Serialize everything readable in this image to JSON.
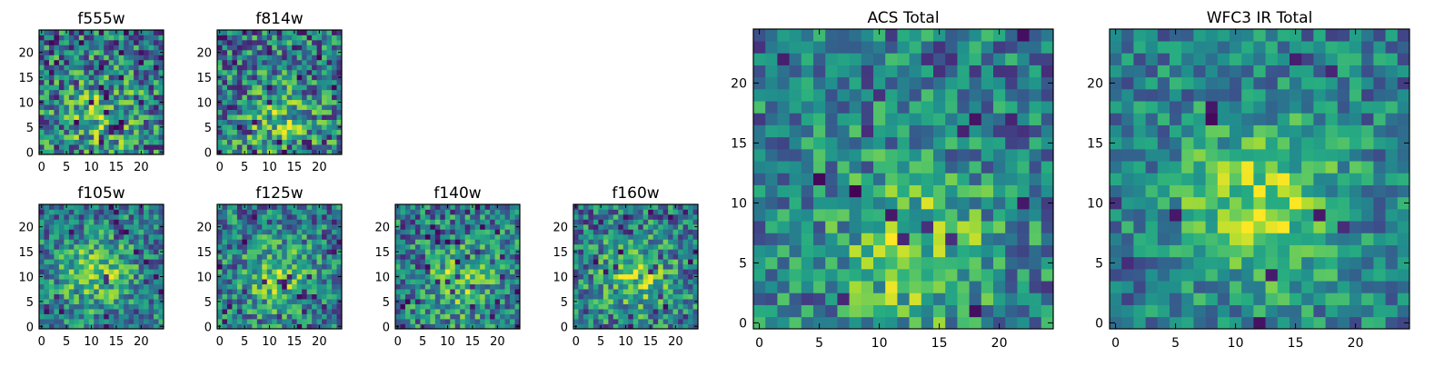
{
  "figure": {
    "colormap": "viridis",
    "colors": {
      "low": "#440154",
      "mid": "#21908d",
      "high": "#fde725",
      "frame": "#000000"
    }
  },
  "chart_data": [
    {
      "type": "heatmap",
      "title": "f555w",
      "grid_size": 25,
      "xticks": [
        0,
        5,
        10,
        15,
        20
      ],
      "yticks": [
        0,
        5,
        10,
        15,
        20
      ],
      "center_x": 12,
      "center_y": 7,
      "noise": 0.46,
      "blob": 0.3,
      "dark_fraction": 0.07
    },
    {
      "type": "heatmap",
      "title": "f814w",
      "grid_size": 25,
      "xticks": [
        0,
        5,
        10,
        15,
        20
      ],
      "yticks": [
        0,
        5,
        10,
        15,
        20
      ],
      "center_x": 12,
      "center_y": 6,
      "noise": 0.46,
      "blob": 0.28,
      "dark_fraction": 0.08
    },
    {
      "type": "heatmap",
      "title": "f105w",
      "grid_size": 25,
      "xticks": [
        0,
        5,
        10,
        15,
        20
      ],
      "yticks": [
        0,
        5,
        10,
        15,
        20
      ],
      "center_x": 11,
      "center_y": 11,
      "noise": 0.36,
      "blob": 0.35,
      "dark_fraction": 0.05
    },
    {
      "type": "heatmap",
      "title": "f125w",
      "grid_size": 25,
      "xticks": [
        0,
        5,
        10,
        15,
        20
      ],
      "yticks": [
        0,
        5,
        10,
        15,
        20
      ],
      "center_x": 12,
      "center_y": 10,
      "noise": 0.38,
      "blob": 0.32,
      "dark_fraction": 0.05
    },
    {
      "type": "heatmap",
      "title": "f140w",
      "grid_size": 25,
      "xticks": [
        0,
        5,
        10,
        15,
        20
      ],
      "yticks": [
        0,
        5,
        10,
        15,
        20
      ],
      "center_x": 12,
      "center_y": 9,
      "noise": 0.4,
      "blob": 0.32,
      "dark_fraction": 0.06
    },
    {
      "type": "heatmap",
      "title": "f160w",
      "grid_size": 25,
      "xticks": [
        0,
        5,
        10,
        15,
        20
      ],
      "yticks": [
        0,
        5,
        10,
        15,
        20
      ],
      "center_x": 12,
      "center_y": 10,
      "noise": 0.4,
      "blob": 0.33,
      "dark_fraction": 0.05
    },
    {
      "type": "heatmap",
      "title": "ACS Total",
      "grid_size": 25,
      "xticks": [
        0,
        5,
        10,
        15,
        20
      ],
      "yticks": [
        0,
        5,
        10,
        15,
        20
      ],
      "center_x": 13,
      "center_y": 6,
      "noise": 0.36,
      "blob": 0.36,
      "dark_fraction": 0.03
    },
    {
      "type": "heatmap",
      "title": "WFC3 IR Total",
      "grid_size": 25,
      "xticks": [
        0,
        5,
        10,
        15,
        20
      ],
      "yticks": [
        0,
        5,
        10,
        15,
        20
      ],
      "center_x": 12,
      "center_y": 10,
      "noise": 0.3,
      "blob": 0.42,
      "dark_fraction": 0.02
    }
  ]
}
